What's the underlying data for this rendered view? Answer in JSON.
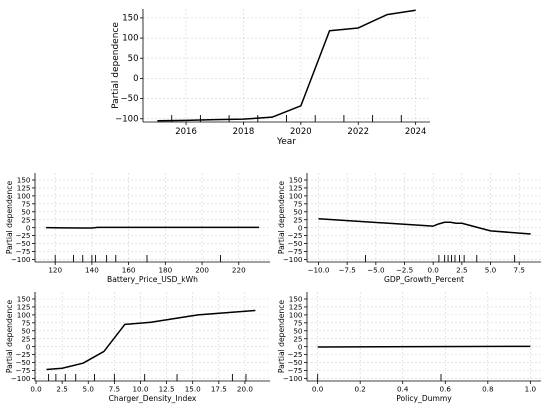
{
  "chart_data": [
    {
      "id": "year",
      "type": "line",
      "xlabel": "Year",
      "ylabel": "Partial dependence",
      "xlim": [
        2014.5,
        2024.5
      ],
      "ylim": [
        -108,
        172
      ],
      "xticks": [
        2016,
        2018,
        2020,
        2022,
        2024
      ],
      "yticks": [
        -100,
        -50,
        0,
        50,
        100,
        150
      ],
      "grid": true,
      "x": [
        2015,
        2016,
        2017,
        2018,
        2019,
        2020,
        2021,
        2022,
        2023,
        2024
      ],
      "y": [
        -105,
        -104,
        -102,
        -101,
        -96,
        -68,
        118,
        125,
        158,
        169
      ],
      "deciles": [
        2015.5,
        2016.5,
        2017.5,
        2018.5,
        2019.5,
        2020.5,
        2021.5,
        2022.5,
        2023.5
      ]
    },
    {
      "id": "battery",
      "type": "line",
      "xlabel": "Battery_Price_USD_kWh",
      "ylabel": "Partial dependence",
      "xlim": [
        109,
        237
      ],
      "ylim": [
        -108,
        172
      ],
      "xticks": [
        120,
        140,
        160,
        180,
        200,
        220
      ],
      "yticks": [
        -100,
        -75,
        -50,
        -25,
        0,
        25,
        50,
        75,
        100,
        125,
        150
      ],
      "grid": true,
      "x": [
        115,
        125,
        135,
        140,
        143,
        145,
        160,
        180,
        200,
        220,
        231
      ],
      "y": [
        0,
        -0.5,
        -1,
        -1,
        1,
        1,
        1,
        1,
        1,
        1,
        1
      ],
      "deciles": [
        120,
        130,
        135,
        140,
        142,
        148,
        153,
        170,
        210
      ]
    },
    {
      "id": "gdp",
      "type": "line",
      "xlabel": "GDP_Growth_Percent",
      "ylabel": "Partial dependence",
      "xlim": [
        -11,
        9.4
      ],
      "ylim": [
        -108,
        172
      ],
      "xticks": [
        -10.0,
        -7.5,
        -5.0,
        -2.5,
        0.0,
        2.5,
        5.0,
        7.5
      ],
      "yticks": [
        -100,
        -75,
        -50,
        -25,
        0,
        25,
        50,
        75,
        100,
        125,
        150
      ],
      "grid": true,
      "x": [
        -10.0,
        0.0,
        0.5,
        1.0,
        1.5,
        2.0,
        2.5,
        5.0,
        8.5
      ],
      "y": [
        28,
        5,
        12,
        17,
        17,
        14,
        14,
        -10,
        -20
      ],
      "deciles": [
        -5.9,
        0.5,
        1.0,
        1.3,
        1.6,
        1.9,
        2.3,
        2.7,
        3.8,
        7.1
      ]
    },
    {
      "id": "charger",
      "type": "line",
      "xlabel": "Charger_Density_Index",
      "ylabel": "Partial dependence",
      "xlim": [
        -0.1,
        22.4
      ],
      "ylim": [
        -108,
        172
      ],
      "xticks": [
        0.0,
        2.5,
        5.0,
        7.5,
        10.0,
        12.5,
        15.0,
        17.5,
        20.0
      ],
      "yticks": [
        -100,
        -75,
        -50,
        -25,
        0,
        25,
        50,
        75,
        100,
        125,
        150
      ],
      "grid": true,
      "x": [
        1.0,
        2.5,
        4.5,
        6.5,
        8.5,
        11.0,
        15.5,
        21.0
      ],
      "y": [
        -72,
        -68,
        -52,
        -15,
        70,
        77,
        100,
        114
      ],
      "deciles": [
        1.2,
        1.9,
        2.8,
        3.8,
        5.6,
        7.5,
        10.4,
        13.5,
        18.8,
        20.1
      ]
    },
    {
      "id": "policy",
      "type": "line",
      "xlabel": "Policy_Dummy",
      "ylabel": "Partial dependence",
      "xlim": [
        -0.05,
        1.05
      ],
      "ylim": [
        -108,
        172
      ],
      "xticks": [
        0.0,
        0.2,
        0.4,
        0.6,
        0.8,
        1.0
      ],
      "yticks": [
        -100,
        -75,
        -50,
        -25,
        0,
        25,
        50,
        75,
        100,
        125,
        150
      ],
      "grid": true,
      "x": [
        0.0,
        1.0
      ],
      "y": [
        -1,
        1
      ],
      "deciles": [
        0.0,
        0.58
      ]
    }
  ]
}
